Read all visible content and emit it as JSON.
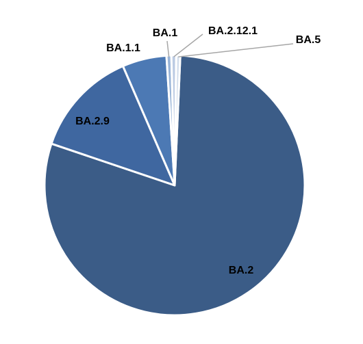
{
  "chart_data": {
    "type": "pie",
    "title": "",
    "labels": [
      "BA.2",
      "BA.2.9",
      "BA.1.1",
      "BA.1",
      "BA.2.12.1",
      "BA.5"
    ],
    "values": [
      79.5,
      13.3,
      5.5,
      0.6,
      0.6,
      0.5
    ],
    "colors": [
      "#3b5c87",
      "#3f67a0",
      "#4c79b4",
      "#9ab5d8",
      "#bccbe3",
      "#d3deec"
    ],
    "legend": "none",
    "data_labels": "category names with leader lines for small slices"
  }
}
